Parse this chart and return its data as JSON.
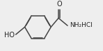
{
  "bg_color": "#eeeeee",
  "line_color": "#444444",
  "text_color": "#222222",
  "lw": 1.1,
  "nh2hcl_text": "NH₂HCl",
  "ho_text": "HO",
  "o_text": "O"
}
